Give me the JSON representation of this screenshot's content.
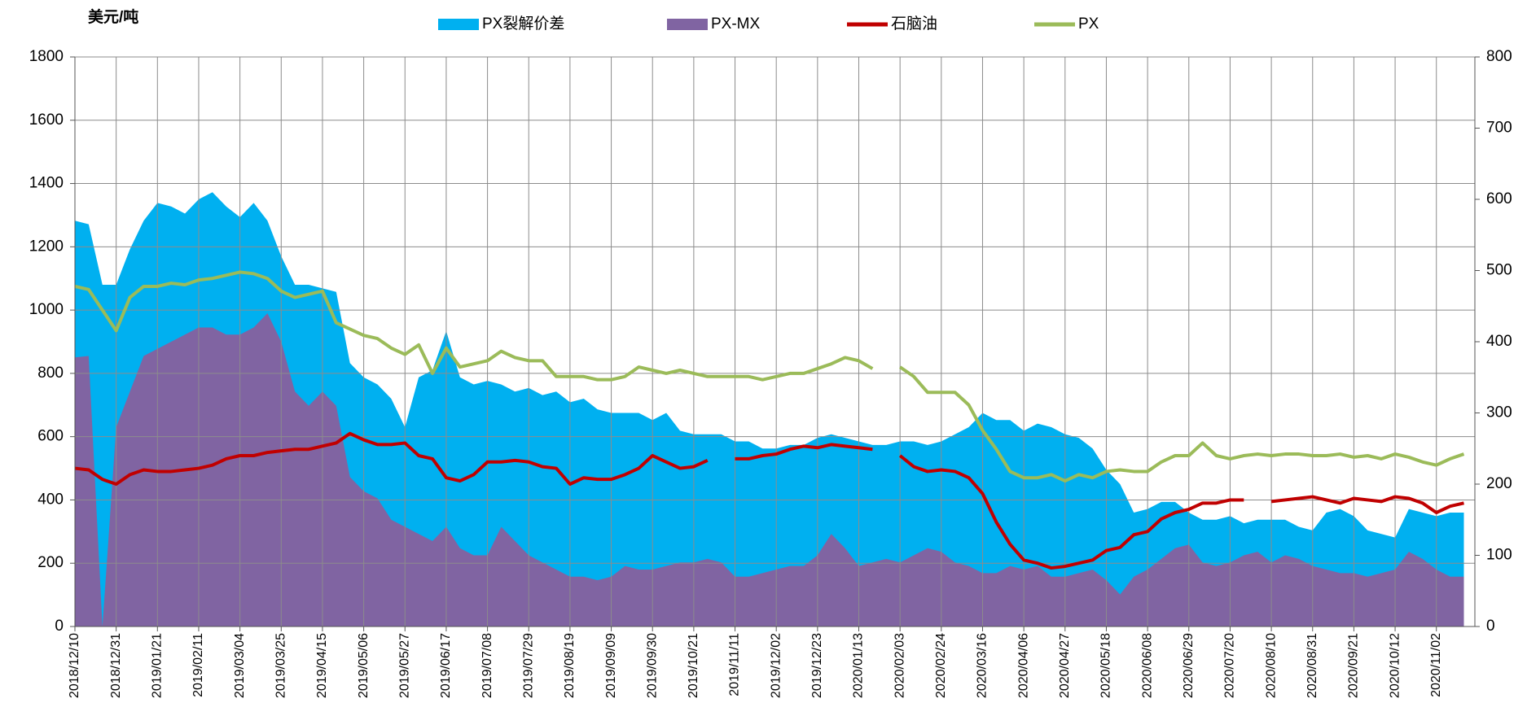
{
  "chart_data": {
    "type": "combo",
    "y_label": "美元/吨",
    "categories": [
      "2018/12/10",
      null,
      null,
      "2018/12/31",
      null,
      null,
      "2019/01/21",
      null,
      null,
      "2019/02/11",
      null,
      null,
      "2019/03/04",
      null,
      null,
      "2019/03/25",
      null,
      null,
      "2019/04/15",
      null,
      null,
      "2019/05/06",
      null,
      null,
      "2019/05/27",
      null,
      null,
      "2019/06/17",
      null,
      null,
      "2019/07/08",
      null,
      null,
      "2019/07/29",
      null,
      null,
      "2019/08/19",
      null,
      null,
      "2019/09/09",
      null,
      null,
      "2019/09/30",
      null,
      null,
      "2019/10/21",
      null,
      null,
      "2019/11/11",
      null,
      null,
      "2019/12/02",
      null,
      null,
      "2019/12/23",
      null,
      null,
      "2020/01/13",
      null,
      null,
      "2020/02/03",
      null,
      null,
      "2020/02/24",
      null,
      null,
      "2020/03/16",
      null,
      null,
      "2020/04/06",
      null,
      null,
      "2020/04/27",
      null,
      null,
      "2020/05/18",
      null,
      null,
      "2020/06/08",
      null,
      null,
      "2020/06/29",
      null,
      null,
      "2020/07/20",
      null,
      null,
      "2020/08/10",
      null,
      null,
      "2020/08/31",
      null,
      null,
      "2020/09/21",
      null,
      null,
      "2020/10/12",
      null,
      null,
      "2020/11/02",
      null,
      null
    ],
    "series": [
      {
        "name": "PX裂解价差",
        "type": "area",
        "axis": "y2",
        "color": "#00b0f0",
        "values": [
          570,
          565,
          480,
          480,
          530,
          570,
          595,
          590,
          580,
          600,
          610,
          590,
          575,
          595,
          570,
          520,
          480,
          480,
          475,
          470,
          370,
          350,
          340,
          320,
          280,
          350,
          360,
          415,
          350,
          340,
          345,
          340,
          330,
          335,
          325,
          330,
          315,
          320,
          305,
          300,
          300,
          300,
          290,
          300,
          275,
          270,
          270,
          270,
          260,
          260,
          250,
          250,
          255,
          255,
          265,
          270,
          265,
          260,
          255,
          255,
          260,
          260,
          255,
          260,
          270,
          280,
          300,
          290,
          290,
          275,
          285,
          280,
          270,
          265,
          250,
          220,
          200,
          160,
          165,
          175,
          175,
          160,
          150,
          150,
          155,
          145,
          150,
          150,
          150,
          140,
          135,
          160,
          165,
          155,
          135,
          130,
          125,
          165,
          160,
          155,
          160,
          160
        ]
      },
      {
        "name": "PX-MX",
        "type": "area",
        "axis": "y2",
        "color": "#8064a2",
        "values": [
          378,
          380,
          0,
          280,
          330,
          380,
          390,
          400,
          410,
          420,
          420,
          410,
          410,
          420,
          440,
          400,
          330,
          310,
          330,
          310,
          210,
          190,
          180,
          150,
          140,
          130,
          120,
          140,
          110,
          100,
          100,
          140,
          120,
          100,
          90,
          80,
          70,
          70,
          65,
          70,
          85,
          80,
          80,
          85,
          90,
          90,
          95,
          90,
          70,
          70,
          75,
          80,
          85,
          85,
          100,
          130,
          110,
          85,
          90,
          95,
          90,
          100,
          110,
          105,
          90,
          85,
          75,
          75,
          85,
          80,
          85,
          70,
          70,
          75,
          80,
          65,
          45,
          70,
          80,
          95,
          110,
          115,
          90,
          85,
          90,
          100,
          105,
          90,
          100,
          95,
          85,
          80,
          75,
          75,
          70,
          75,
          80,
          105,
          95,
          80,
          70,
          70
        ]
      },
      {
        "name": "石脑油",
        "type": "line",
        "color": "#c00000",
        "values": [
          500,
          495,
          465,
          450,
          480,
          495,
          490,
          490,
          495,
          500,
          510,
          530,
          540,
          540,
          550,
          555,
          560,
          560,
          570,
          580,
          610,
          590,
          575,
          575,
          580,
          540,
          530,
          470,
          460,
          480,
          520,
          520,
          525,
          520,
          505,
          500,
          450,
          470,
          465,
          465,
          480,
          500,
          540,
          520,
          500,
          505,
          525,
          null,
          530,
          530,
          540,
          545,
          560,
          570,
          565,
          575,
          570,
          565,
          560,
          null,
          540,
          505,
          490,
          495,
          490,
          470,
          420,
          330,
          260,
          210,
          200,
          185,
          190,
          200,
          210,
          240,
          250,
          290,
          300,
          340,
          360,
          370,
          390,
          390,
          400,
          400,
          null,
          395,
          400,
          405,
          410,
          400,
          390,
          405,
          400,
          395,
          410,
          405,
          390,
          360,
          380,
          390
        ]
      },
      {
        "name": "PX",
        "type": "line",
        "color": "#9bbb59",
        "values": [
          1075,
          1065,
          1000,
          935,
          1040,
          1075,
          1075,
          1085,
          1080,
          1095,
          1100,
          1110,
          1120,
          1115,
          1100,
          1060,
          1040,
          1050,
          1060,
          960,
          940,
          920,
          910,
          880,
          860,
          890,
          800,
          880,
          820,
          830,
          840,
          870,
          850,
          840,
          840,
          790,
          790,
          790,
          780,
          780,
          790,
          820,
          810,
          800,
          810,
          800,
          790,
          790,
          790,
          790,
          780,
          790,
          800,
          800,
          815,
          830,
          850,
          840,
          815,
          null,
          820,
          790,
          740,
          740,
          740,
          700,
          620,
          560,
          490,
          470,
          470,
          480,
          460,
          480,
          470,
          490,
          495,
          490,
          490,
          520,
          540,
          540,
          580,
          540,
          530,
          540,
          545,
          540,
          545,
          545,
          540,
          540,
          545,
          535,
          540,
          530,
          545,
          535,
          520,
          510,
          530,
          545
        ]
      }
    ],
    "ylim": [
      0,
      1800
    ],
    "yticks": [
      0,
      200,
      400,
      600,
      800,
      1000,
      1200,
      1400,
      1600,
      1800
    ],
    "y2lim": [
      0,
      800
    ],
    "y2ticks": [
      0,
      100,
      200,
      300,
      400,
      500,
      600,
      700,
      800
    ],
    "grid": true
  }
}
